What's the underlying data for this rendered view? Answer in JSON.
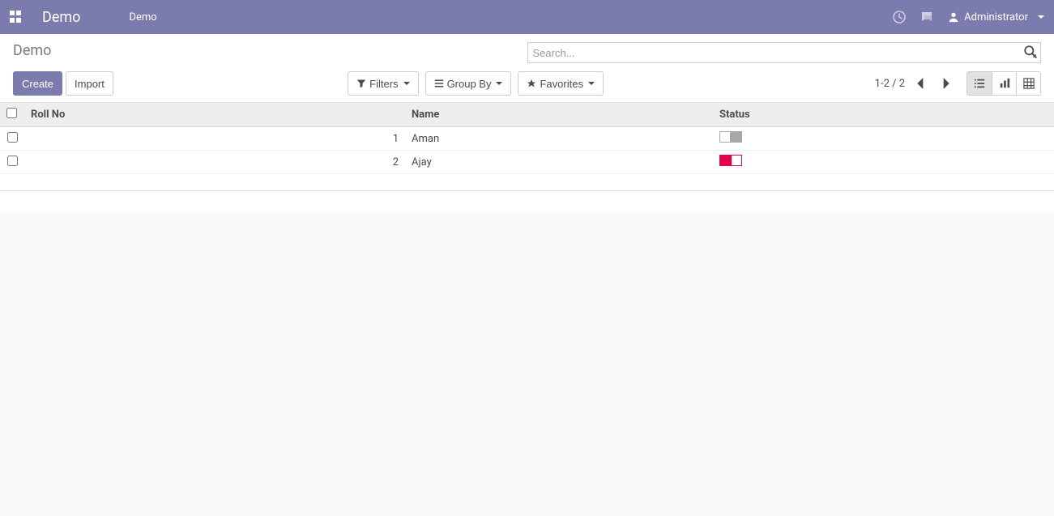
{
  "colors": {
    "brand": "#7c7bad",
    "text": "#4c4c4c",
    "border": "#cccccc",
    "header_bg": "#eeeeee",
    "toggle_off": "#a8a8a8",
    "toggle_on": "#e6004c",
    "page_bg": "#f9f9f9"
  },
  "navbar": {
    "brand": "Demo",
    "menu_item": "Demo",
    "user_name": "Administrator"
  },
  "control_panel": {
    "breadcrumb": "Demo",
    "search_placeholder": "Search...",
    "buttons": {
      "create": "Create",
      "import": "Import",
      "filters": "Filters",
      "group_by": "Group By",
      "favorites": "Favorites"
    },
    "pager": "1-2 / 2",
    "views": {
      "active": "list"
    }
  },
  "table": {
    "columns": {
      "roll_no": "Roll No",
      "name": "Name",
      "status": "Status"
    },
    "rows": [
      {
        "roll_no": "1",
        "name": "Aman",
        "status": false
      },
      {
        "roll_no": "2",
        "name": "Ajay",
        "status": true
      }
    ]
  }
}
